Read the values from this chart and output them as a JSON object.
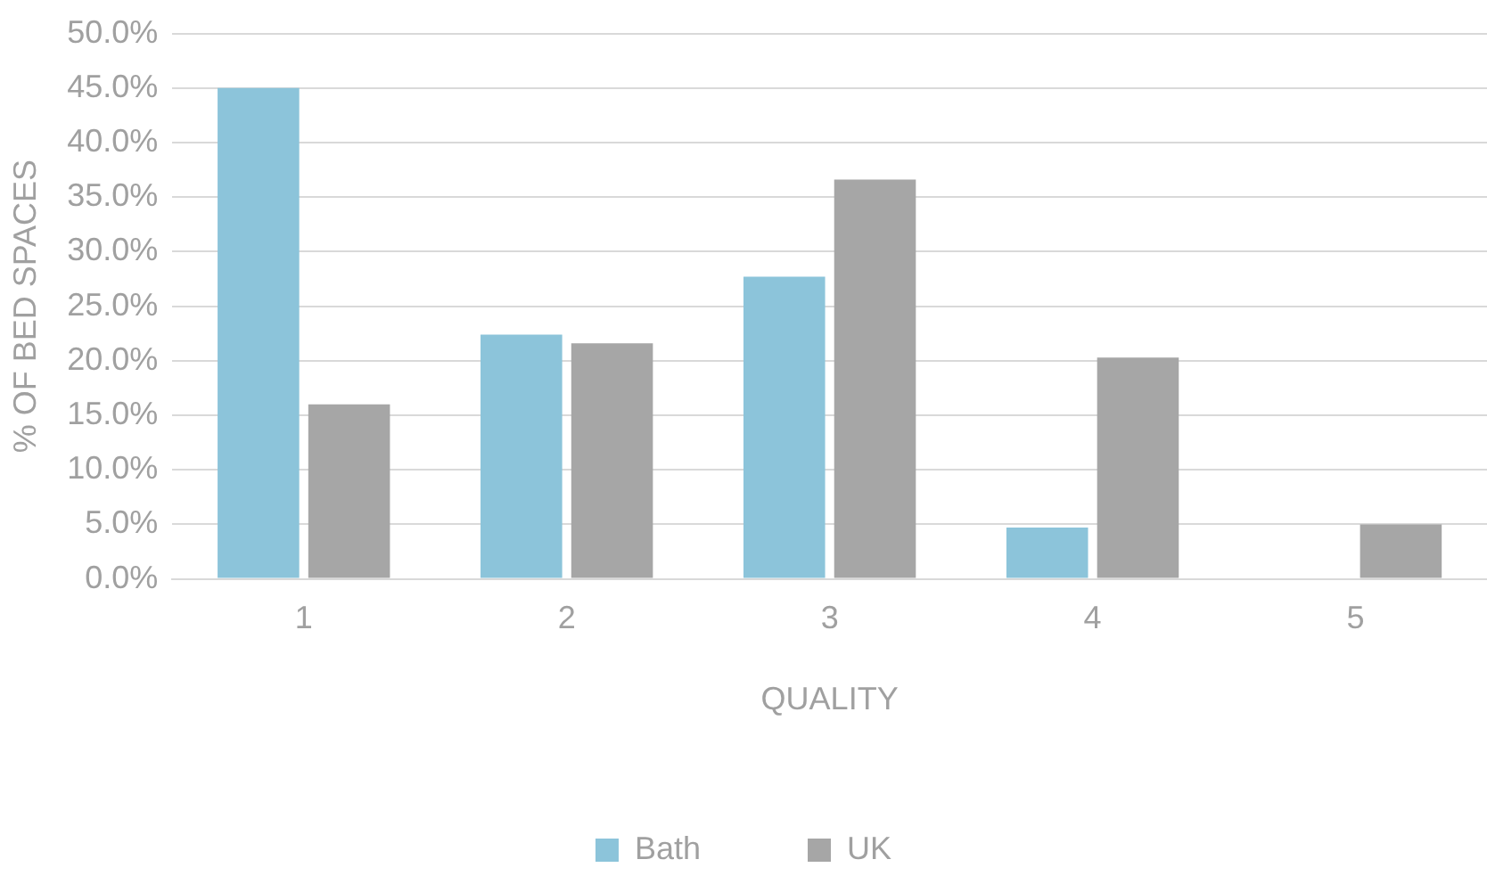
{
  "chart_data": {
    "type": "bar",
    "xlabel": "QUALITY",
    "ylabel": "% OF BED SPACES",
    "categories": [
      "1",
      "2",
      "3",
      "4",
      "5"
    ],
    "series": [
      {
        "name": "Bath",
        "color": "#8cc4da",
        "values": [
          45.0,
          22.4,
          27.7,
          4.7,
          0
        ]
      },
      {
        "name": "UK",
        "color": "#a6a6a6",
        "values": [
          16.0,
          21.6,
          36.6,
          20.3,
          5.0
        ]
      }
    ],
    "ylim": [
      0,
      50
    ],
    "yticks": [
      {
        "value": 0,
        "label": "0.0%"
      },
      {
        "value": 5,
        "label": "5.0%"
      },
      {
        "value": 10,
        "label": "10.0%"
      },
      {
        "value": 15,
        "label": "15.0%"
      },
      {
        "value": 20,
        "label": "20.0%"
      },
      {
        "value": 25,
        "label": "25.0%"
      },
      {
        "value": 30,
        "label": "30.0%"
      },
      {
        "value": 35,
        "label": "35.0%"
      },
      {
        "value": 40,
        "label": "40.0%"
      },
      {
        "value": 45,
        "label": "45.0%"
      },
      {
        "value": 50,
        "label": "50.0%"
      }
    ],
    "grid": "y",
    "legend": "bottom"
  }
}
